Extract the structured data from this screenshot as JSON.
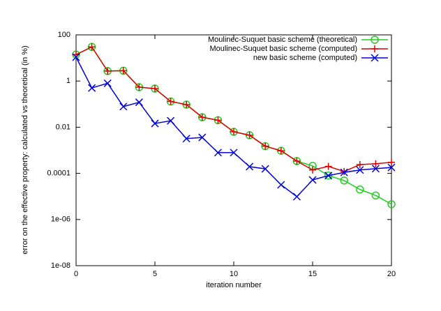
{
  "chart_data": {
    "type": "line",
    "xlabel": "iteration number",
    "ylabel": "error on the effective property: calculated vs theoretical (in %)",
    "x": [
      0,
      1,
      2,
      3,
      4,
      5,
      6,
      7,
      8,
      9,
      10,
      11,
      12,
      13,
      14,
      15,
      16,
      17,
      18,
      19,
      20
    ],
    "xlim": [
      0,
      20
    ],
    "xticks": [
      0,
      5,
      10,
      15,
      20
    ],
    "ylim": [
      1e-08,
      100
    ],
    "ylog": true,
    "yticks": [
      {
        "value": 1e-08,
        "label": "1e-08"
      },
      {
        "value": 1e-06,
        "label": "1e-06"
      },
      0.0001,
      0.01,
      1,
      100
    ],
    "legend": "upper right",
    "series": [
      {
        "name": "Moulinec-Suquet basic scheme (theoretical)",
        "color": "#22cc22",
        "marker": "circle",
        "values": [
          14,
          30,
          2.7,
          2.8,
          0.54,
          0.47,
          0.13,
          0.095,
          0.027,
          0.02,
          0.0063,
          0.0045,
          0.0015,
          0.00095,
          0.00034,
          0.00021,
          8e-05,
          4.9e-05,
          2e-05,
          1.1e-05,
          4.6e-06
        ]
      },
      {
        "name": "Moulinec-Suquet basic scheme (computed)",
        "color": "#dd0000",
        "marker": "plus",
        "values": [
          14,
          30,
          2.7,
          2.8,
          0.54,
          0.47,
          0.13,
          0.095,
          0.027,
          0.02,
          0.0063,
          0.0045,
          0.0015,
          0.00095,
          0.00034,
          0.00014,
          0.0002,
          0.00012,
          0.00024,
          0.00026,
          0.0003
        ]
      },
      {
        "name": "new basic scheme (computed)",
        "color": "#0000dd",
        "marker": "cross",
        "values": [
          10.8,
          0.5,
          0.8,
          0.078,
          0.12,
          0.0145,
          0.019,
          0.0032,
          0.0036,
          0.00079,
          0.00079,
          0.000195,
          0.000157,
          3.2e-05,
          9.8e-06,
          5.2e-05,
          8e-05,
          0.00011,
          0.00014,
          0.00016,
          0.00018
        ]
      }
    ]
  }
}
